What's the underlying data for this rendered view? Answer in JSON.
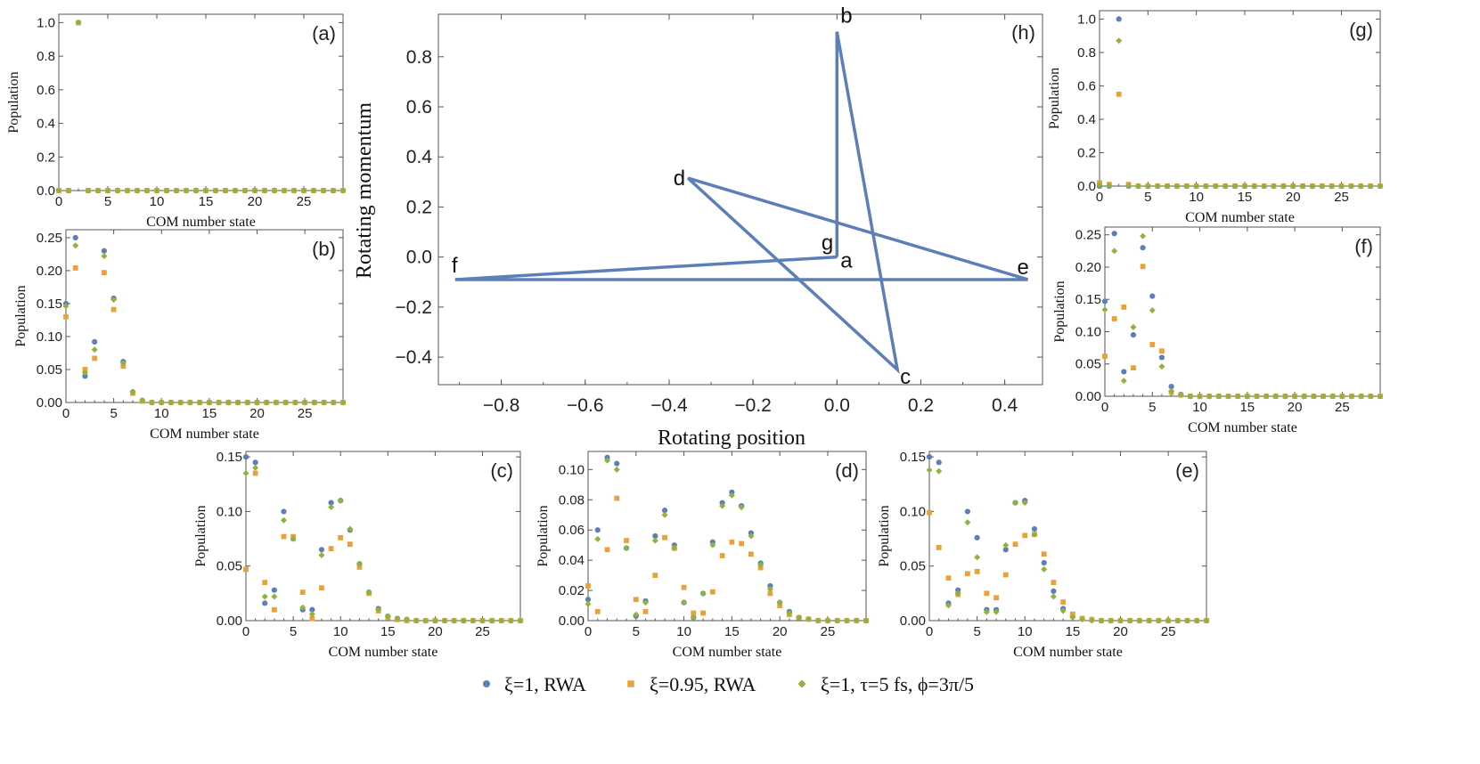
{
  "colors": {
    "blue": "#5b7fb6",
    "orange": "#e8a13b",
    "green": "#8fb33d",
    "frame": "#555555"
  },
  "series": [
    {
      "key": "s1",
      "label": "ξ=1, RWA",
      "color": "#5b7fb6",
      "marker": "circle"
    },
    {
      "key": "s2",
      "label": "ξ=0.95, RWA",
      "color": "#e8a13b",
      "marker": "square"
    },
    {
      "key": "s3",
      "label": "ξ=1, τ=5 fs, ϕ=3π/5",
      "color": "#8fb33d",
      "marker": "diamond"
    }
  ],
  "chart_data": [
    {
      "id": "a",
      "type": "scatter",
      "panel_label": "(a)",
      "xlabel": "COM number state",
      "ylabel": "Population",
      "xlim": [
        0,
        29
      ],
      "ylim": [
        0,
        1.05
      ],
      "xticks": [
        0,
        5,
        10,
        15,
        20,
        25
      ],
      "yticks": [
        0.0,
        0.2,
        0.4,
        0.6,
        0.8,
        1.0
      ],
      "ytick_labels": [
        "0.0",
        "0.2",
        "0.4",
        "0.6",
        "0.8",
        "1.0"
      ],
      "s1": [
        0,
        0,
        1,
        0,
        0,
        0,
        0,
        0,
        0,
        0,
        0,
        0,
        0,
        0,
        0,
        0,
        0,
        0,
        0,
        0,
        0,
        0,
        0,
        0,
        0,
        0,
        0,
        0,
        0,
        0
      ],
      "s2": [
        0,
        0,
        1,
        0,
        0,
        0,
        0,
        0,
        0,
        0,
        0,
        0,
        0,
        0,
        0,
        0,
        0,
        0,
        0,
        0,
        0,
        0,
        0,
        0,
        0,
        0,
        0,
        0,
        0,
        0
      ],
      "s3": [
        0,
        0,
        1,
        0,
        0,
        0,
        0,
        0,
        0,
        0,
        0,
        0,
        0,
        0,
        0,
        0,
        0,
        0,
        0,
        0,
        0,
        0,
        0,
        0,
        0,
        0,
        0,
        0,
        0,
        0
      ]
    },
    {
      "id": "b",
      "type": "scatter",
      "panel_label": "(b)",
      "xlabel": "COM number state",
      "ylabel": "Population",
      "xlim": [
        0,
        29
      ],
      "ylim": [
        0,
        0.262
      ],
      "xticks": [
        0,
        5,
        10,
        15,
        20,
        25
      ],
      "yticks": [
        0.0,
        0.05,
        0.1,
        0.15,
        0.2,
        0.25
      ],
      "ytick_labels": [
        "0.00",
        "0.05",
        "0.10",
        "0.15",
        "0.20",
        "0.25"
      ],
      "s1": [
        0.15,
        0.25,
        0.04,
        0.092,
        0.23,
        0.158,
        0.062,
        0.016,
        0.003,
        0,
        0,
        0,
        0,
        0,
        0,
        0,
        0,
        0,
        0,
        0,
        0,
        0,
        0,
        0,
        0,
        0,
        0,
        0,
        0,
        0
      ],
      "s2": [
        0.13,
        0.204,
        0.05,
        0.067,
        0.197,
        0.141,
        0.055,
        0.014,
        0.002,
        0,
        0,
        0,
        0,
        0,
        0,
        0,
        0,
        0,
        0,
        0,
        0,
        0,
        0,
        0,
        0,
        0,
        0,
        0,
        0,
        0
      ],
      "s3": [
        0.146,
        0.238,
        0.045,
        0.08,
        0.222,
        0.156,
        0.06,
        0.016,
        0.003,
        0,
        0,
        0,
        0,
        0,
        0,
        0,
        0,
        0,
        0,
        0,
        0,
        0,
        0,
        0,
        0,
        0,
        0,
        0,
        0,
        0
      ]
    },
    {
      "id": "c",
      "type": "scatter",
      "panel_label": "(c)",
      "xlabel": "COM number state",
      "ylabel": "Population",
      "xlim": [
        0,
        29
      ],
      "ylim": [
        0,
        0.155
      ],
      "xticks": [
        0,
        5,
        10,
        15,
        20,
        25
      ],
      "yticks": [
        0.0,
        0.05,
        0.1,
        0.15
      ],
      "ytick_labels": [
        "0.00",
        "0.05",
        "0.10",
        "0.15"
      ],
      "s1": [
        0.15,
        0.145,
        0.016,
        0.028,
        0.1,
        0.075,
        0.01,
        0.01,
        0.065,
        0.108,
        0.11,
        0.083,
        0.052,
        0.026,
        0.011,
        0.004,
        0.002,
        0.001,
        0,
        0,
        0,
        0,
        0,
        0,
        0,
        0,
        0,
        0,
        0,
        0
      ],
      "s2": [
        0.047,
        0.135,
        0.035,
        0.01,
        0.077,
        0.077,
        0.026,
        0.002,
        0.03,
        0.066,
        0.076,
        0.07,
        0.049,
        0.025,
        0.009,
        0.003,
        0.001,
        0,
        0,
        0,
        0,
        0,
        0,
        0,
        0,
        0,
        0,
        0,
        0,
        0
      ],
      "s3": [
        0.135,
        0.14,
        0.022,
        0.022,
        0.092,
        0.075,
        0.012,
        0.006,
        0.06,
        0.104,
        0.11,
        0.084,
        0.052,
        0.026,
        0.01,
        0.004,
        0.002,
        0.001,
        0,
        0,
        0,
        0,
        0,
        0,
        0,
        0,
        0,
        0,
        0,
        0
      ]
    },
    {
      "id": "d",
      "type": "scatter",
      "panel_label": "(d)",
      "xlabel": "COM number state",
      "ylabel": "Population",
      "xlim": [
        0,
        29
      ],
      "ylim": [
        0,
        0.112
      ],
      "xticks": [
        0,
        5,
        10,
        15,
        20,
        25
      ],
      "yticks": [
        0.0,
        0.02,
        0.04,
        0.06,
        0.08,
        0.1
      ],
      "ytick_labels": [
        "0.00",
        "0.02",
        "0.04",
        "0.06",
        "0.08",
        "0.10"
      ],
      "s1": [
        0.014,
        0.06,
        0.108,
        0.104,
        0.048,
        0.003,
        0.013,
        0.056,
        0.073,
        0.05,
        0.012,
        0.002,
        0.018,
        0.052,
        0.078,
        0.085,
        0.076,
        0.058,
        0.038,
        0.023,
        0.012,
        0.006,
        0.002,
        0.001,
        0,
        0,
        0,
        0,
        0,
        0
      ],
      "s2": [
        0.023,
        0.006,
        0.047,
        0.081,
        0.053,
        0.014,
        0.006,
        0.03,
        0.055,
        0.048,
        0.022,
        0.005,
        0.005,
        0.019,
        0.043,
        0.052,
        0.051,
        0.044,
        0.035,
        0.018,
        0.01,
        0.004,
        0.002,
        0.001,
        0,
        0,
        0,
        0,
        0,
        0
      ],
      "s3": [
        0.011,
        0.054,
        0.106,
        0.1,
        0.048,
        0.004,
        0.012,
        0.053,
        0.07,
        0.048,
        0.012,
        0.002,
        0.018,
        0.05,
        0.076,
        0.083,
        0.075,
        0.056,
        0.037,
        0.021,
        0.012,
        0.005,
        0.002,
        0.001,
        0,
        0,
        0,
        0,
        0,
        0
      ]
    },
    {
      "id": "e",
      "type": "scatter",
      "panel_label": "(e)",
      "xlabel": "COM number state",
      "ylabel": "Population",
      "xlim": [
        0,
        29
      ],
      "ylim": [
        0,
        0.155
      ],
      "xticks": [
        0,
        5,
        10,
        15,
        20,
        25
      ],
      "yticks": [
        0.0,
        0.05,
        0.1,
        0.15
      ],
      "ytick_labels": [
        "0.00",
        "0.05",
        "0.10",
        "0.15"
      ],
      "s1": [
        0.15,
        0.145,
        0.016,
        0.028,
        0.1,
        0.076,
        0.01,
        0.01,
        0.065,
        0.108,
        0.11,
        0.084,
        0.053,
        0.027,
        0.011,
        0.004,
        0.002,
        0.001,
        0,
        0,
        0,
        0,
        0,
        0,
        0,
        0,
        0,
        0,
        0,
        0
      ],
      "s2": [
        0.099,
        0.067,
        0.039,
        0.024,
        0.043,
        0.045,
        0.025,
        0.021,
        0.042,
        0.07,
        0.078,
        0.079,
        0.061,
        0.035,
        0.017,
        0.006,
        0.002,
        0.001,
        0,
        0,
        0,
        0,
        0,
        0,
        0,
        0,
        0,
        0,
        0,
        0
      ],
      "s3": [
        0.138,
        0.137,
        0.014,
        0.025,
        0.09,
        0.058,
        0.008,
        0.008,
        0.069,
        0.108,
        0.108,
        0.079,
        0.047,
        0.022,
        0.009,
        0.003,
        0.001,
        0,
        0,
        0,
        0,
        0,
        0,
        0,
        0,
        0,
        0,
        0,
        0,
        0
      ]
    },
    {
      "id": "f",
      "type": "scatter",
      "panel_label": "(f)",
      "xlabel": "COM number state",
      "ylabel": "Population",
      "xlim": [
        0,
        29
      ],
      "ylim": [
        0,
        0.262
      ],
      "xticks": [
        0,
        5,
        10,
        15,
        20,
        25
      ],
      "yticks": [
        0.0,
        0.05,
        0.1,
        0.15,
        0.2,
        0.25
      ],
      "ytick_labels": [
        "0.00",
        "0.05",
        "0.10",
        "0.15",
        "0.20",
        "0.25"
      ],
      "s1": [
        0.147,
        0.252,
        0.038,
        0.095,
        0.23,
        0.155,
        0.06,
        0.015,
        0.003,
        0,
        0,
        0,
        0,
        0,
        0,
        0,
        0,
        0,
        0,
        0,
        0,
        0,
        0,
        0,
        0,
        0,
        0,
        0,
        0,
        0
      ],
      "s2": [
        0.062,
        0.12,
        0.138,
        0.044,
        0.201,
        0.08,
        0.07,
        0.006,
        0.002,
        0,
        0,
        0,
        0,
        0,
        0,
        0,
        0,
        0,
        0,
        0,
        0,
        0,
        0,
        0,
        0,
        0,
        0,
        0,
        0,
        0
      ],
      "s3": [
        0.134,
        0.225,
        0.024,
        0.107,
        0.248,
        0.133,
        0.046,
        0.008,
        0.002,
        0,
        0,
        0,
        0,
        0,
        0,
        0,
        0,
        0,
        0,
        0,
        0,
        0,
        0,
        0,
        0,
        0,
        0,
        0,
        0,
        0
      ]
    },
    {
      "id": "g",
      "type": "scatter",
      "panel_label": "(g)",
      "xlabel": "COM number state",
      "ylabel": "Population",
      "xlim": [
        0,
        29
      ],
      "ylim": [
        0,
        1.05
      ],
      "xticks": [
        0,
        5,
        10,
        15,
        20,
        25
      ],
      "yticks": [
        0.0,
        0.2,
        0.4,
        0.6,
        0.8,
        1.0
      ],
      "ytick_labels": [
        "0.0",
        "0.2",
        "0.4",
        "0.6",
        "0.8",
        "1.0"
      ],
      "s1": [
        0,
        0,
        1,
        0,
        0,
        0,
        0,
        0,
        0,
        0,
        0,
        0,
        0,
        0,
        0,
        0,
        0,
        0,
        0,
        0,
        0,
        0,
        0,
        0,
        0,
        0,
        0,
        0,
        0,
        0
      ],
      "s2": [
        0.02,
        0.01,
        0.55,
        0.01,
        0,
        0,
        0,
        0,
        0,
        0,
        0,
        0,
        0,
        0,
        0,
        0,
        0,
        0,
        0,
        0,
        0,
        0,
        0,
        0,
        0,
        0,
        0,
        0,
        0,
        0
      ],
      "s3": [
        0.005,
        0.003,
        0.87,
        0.002,
        0,
        0,
        0,
        0,
        0,
        0,
        0,
        0,
        0,
        0,
        0,
        0,
        0,
        0,
        0,
        0,
        0,
        0,
        0,
        0,
        0,
        0,
        0,
        0,
        0,
        0
      ]
    },
    {
      "id": "h",
      "type": "line",
      "panel_label": "(h)",
      "xlabel": "Rotating position",
      "ylabel": "Rotating momentum",
      "xlim": [
        -0.95,
        0.49
      ],
      "ylim": [
        -0.51,
        0.97
      ],
      "xticks": [
        -0.8,
        -0.6,
        -0.4,
        -0.2,
        0.0,
        0.2,
        0.4
      ],
      "xtick_labels": [
        "−0.8",
        "−0.6",
        "−0.4",
        "−0.2",
        "0.0",
        "0.2",
        "0.4"
      ],
      "yticks": [
        -0.4,
        -0.2,
        0.0,
        0.2,
        0.4,
        0.6,
        0.8
      ],
      "ytick_labels": [
        "−0.4",
        "−0.2",
        "0.0",
        "0.2",
        "0.4",
        "0.6",
        "0.8"
      ],
      "path": [
        {
          "label": "a",
          "x": 0.0,
          "y": 0.0
        },
        {
          "label": "b",
          "x": 0.0,
          "y": 0.9
        },
        {
          "label": "c",
          "x": 0.144,
          "y": -0.45
        },
        {
          "label": "d",
          "x": -0.355,
          "y": 0.315
        },
        {
          "label": "e",
          "x": 0.455,
          "y": -0.09
        },
        {
          "label": "f",
          "x": -0.91,
          "y": -0.09
        },
        {
          "label": "g",
          "x": 0.0,
          "y": 0.0
        }
      ]
    }
  ]
}
